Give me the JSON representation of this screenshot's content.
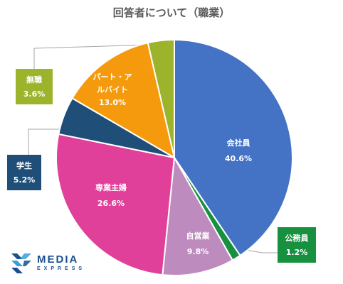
{
  "chart_data": {
    "type": "pie",
    "title": "回答者について（職業）",
    "slices": [
      {
        "name": "会社員",
        "value": 40.6,
        "label": "40.6%",
        "color": "#4472C4",
        "label_color": "#ffffff"
      },
      {
        "name": "公務員",
        "value": 1.2,
        "label": "1.2%",
        "color": "#17913F",
        "label_color": "#ffffff"
      },
      {
        "name": "自営業",
        "value": 9.8,
        "label": "9.8%",
        "color": "#BE8BBF",
        "label_color": "#ffffff"
      },
      {
        "name": "専業主婦",
        "value": 26.6,
        "label": "26.6%",
        "color": "#E0409A",
        "label_color": "#ffffff"
      },
      {
        "name": "学生",
        "value": 5.2,
        "label": "5.2%",
        "color": "#1F4E79",
        "label_color": "#ffffff"
      },
      {
        "name": "パート・アルバイト",
        "value": 13.0,
        "label": "13.0%",
        "color": "#F59A0C",
        "label_color": "#ffffff"
      },
      {
        "name": "無職",
        "value": 3.6,
        "label": "3.6%",
        "color": "#9BB42C",
        "label_color": "#ffffff"
      }
    ]
  },
  "logo": {
    "main": "MEDIA",
    "sub": "EXPRESS",
    "color": "#1b4f8f",
    "accent": "#3a9fd8"
  }
}
